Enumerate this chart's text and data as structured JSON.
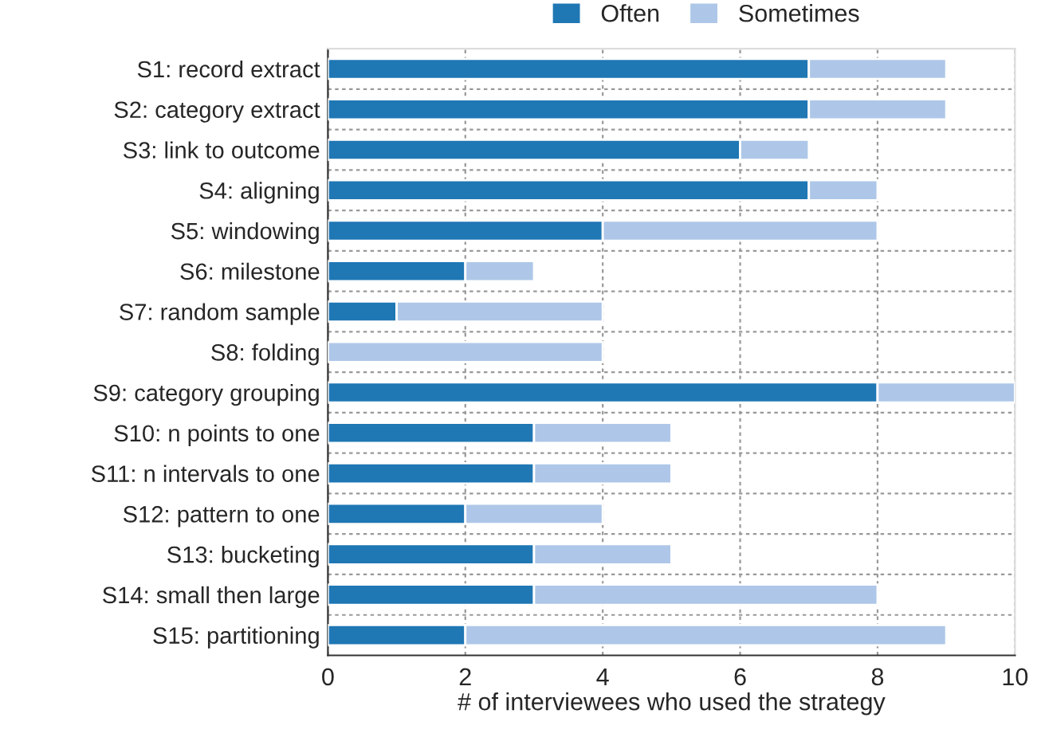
{
  "chart_data": {
    "type": "bar",
    "orientation": "horizontal",
    "stacked": true,
    "xlabel": "# of interviewees who used the strategy",
    "categories": [
      "S1: record extract",
      "S2: category extract",
      "S3: link to outcome",
      "S4: aligning",
      "S5: windowing",
      "S6: milestone",
      "S7: random sample",
      "S8: folding",
      "S9: category grouping",
      "S10: n points to one",
      "S11: n intervals to one",
      "S12: pattern to one",
      "S13: bucketing",
      "S14: small then large",
      "S15: partitioning"
    ],
    "series": [
      {
        "name": "Often",
        "color": "#1f77b4",
        "values": [
          7,
          7,
          6,
          7,
          4,
          2,
          1,
          0,
          8,
          3,
          3,
          2,
          3,
          3,
          2
        ]
      },
      {
        "name": "Sometimes",
        "color": "#aec7e8",
        "values": [
          2,
          2,
          1,
          1,
          4,
          1,
          3,
          4,
          2,
          2,
          2,
          2,
          2,
          5,
          7
        ]
      }
    ],
    "xlim": [
      0,
      10
    ],
    "xticks": [
      0,
      2,
      4,
      6,
      8,
      10
    ],
    "grid": true,
    "legend": "top"
  }
}
